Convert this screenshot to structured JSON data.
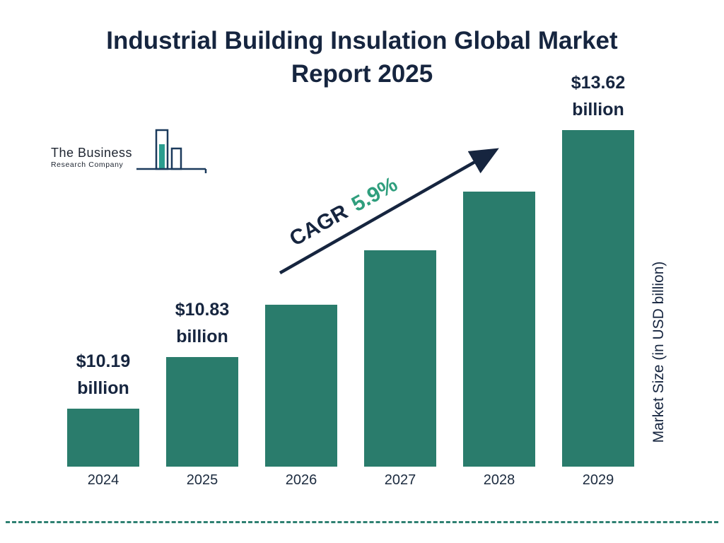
{
  "title": "Industrial Building Insulation Global Market Report 2025",
  "logo": {
    "line1": "The Business",
    "line2": "Research Company"
  },
  "cagr": {
    "label": "CAGR",
    "value": "5.9%"
  },
  "y_axis_label": "Market Size (in USD billion)",
  "colors": {
    "bar": "#2a7c6c",
    "navy": "#16253f",
    "teal_accent": "#2f9e7d"
  },
  "chart_data": {
    "type": "bar",
    "title": "Industrial Building Insulation Global Market Report 2025",
    "categories": [
      "2024",
      "2025",
      "2026",
      "2027",
      "2028",
      "2029"
    ],
    "values": [
      10.19,
      10.83,
      11.47,
      12.14,
      12.86,
      13.62
    ],
    "labels": {
      "2024": [
        "$10.19",
        "billion"
      ],
      "2025": [
        "$10.83",
        "billion"
      ],
      "2029": [
        "$13.62",
        "billion"
      ]
    },
    "xlabel": "",
    "ylabel": "Market Size (in USD billion)",
    "ylim": [
      9.48,
      14.0
    ],
    "grid": false,
    "legend": false,
    "annotations": [
      "CAGR 5.9%"
    ]
  }
}
